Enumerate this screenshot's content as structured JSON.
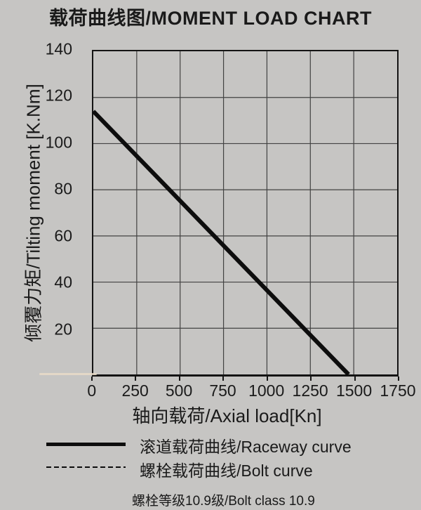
{
  "page": {
    "background": "#c6c5c3"
  },
  "colors": {
    "bg": "#c6c5c3",
    "ink": "#1a1a1a",
    "curve": "#0d0d0d",
    "grid": "#424242",
    "axis": "#141414",
    "artifact": "#e8dbc8"
  },
  "chart_data": {
    "type": "line",
    "title": "载荷曲线图/MOMENT LOAD CHART",
    "xlabel": "轴向载荷/Axial load[Kn]",
    "ylabel": "倾覆力矩/Tilting moment [K.Nm]",
    "xlim": [
      0,
      1750
    ],
    "ylim": [
      0,
      140
    ],
    "x_ticks": [
      0,
      250,
      500,
      750,
      1000,
      1250,
      1500,
      1750
    ],
    "y_ticks": [
      20,
      40,
      60,
      80,
      100,
      120,
      140
    ],
    "grid": true,
    "legend_position": "below-left",
    "series": [
      {
        "name": "滚道载荷曲线/Raceway curve",
        "line_style": "solid",
        "points": [
          [
            0,
            114
          ],
          [
            1470,
            0
          ]
        ]
      },
      {
        "name": "螺栓载荷曲线/Bolt curve",
        "line_style": "dashed",
        "points": []
      }
    ],
    "note": "螺栓等级10.9级/Bolt class 10.9"
  }
}
